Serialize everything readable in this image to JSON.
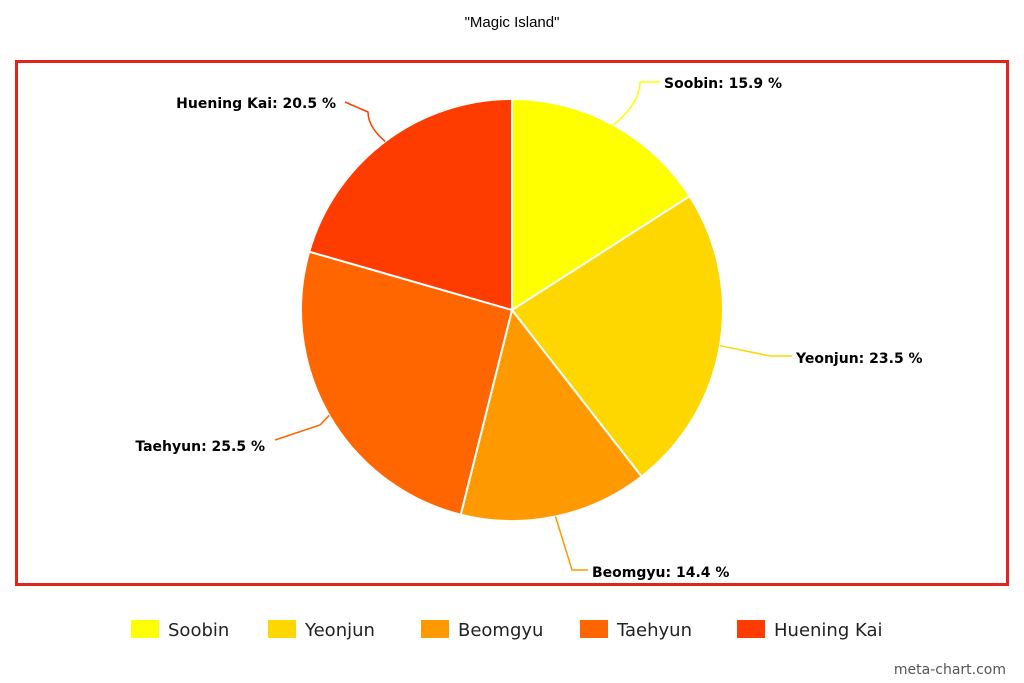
{
  "chart_data": {
    "type": "pie",
    "title": "\"Magic Island\"",
    "slices": [
      {
        "name": "Soobin",
        "value": 15.9,
        "label": "Soobin: 15.9 %",
        "color": "#FFFF00"
      },
      {
        "name": "Yeonjun",
        "value": 23.5,
        "label": "Yeonjun: 23.5 %",
        "color": "#FFD700"
      },
      {
        "name": "Beomgyu",
        "value": 14.4,
        "label": "Beomgyu: 14.4 %",
        "color": "#FF9900"
      },
      {
        "name": "Taehyun",
        "value": 25.5,
        "label": "Taehyun: 25.5 %",
        "color": "#FF6600"
      },
      {
        "name": "Huening Kai",
        "value": 20.5,
        "label": "Huening Kai: 20.5 %",
        "color": "#FF3C00"
      }
    ],
    "legend_position": "bottom",
    "start": "top",
    "direction": "clockwise"
  },
  "frame_color": "#E0261B",
  "credit": "meta-chart.com"
}
